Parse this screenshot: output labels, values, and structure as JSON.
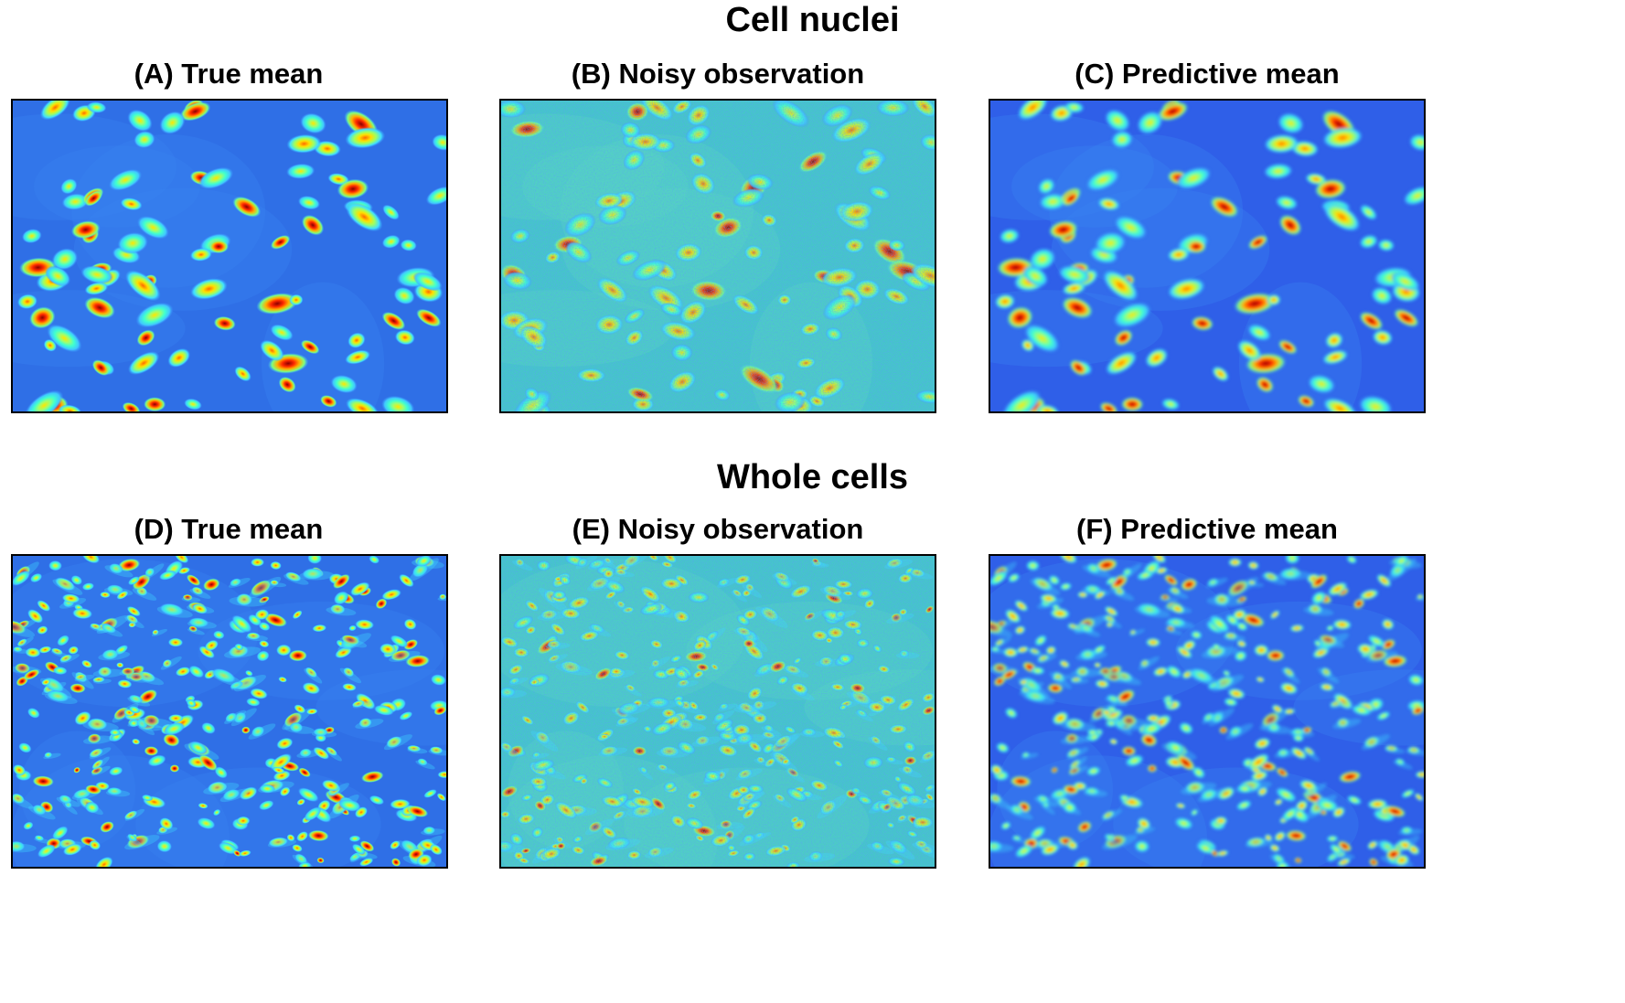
{
  "figure": {
    "sections": [
      {
        "title": "Cell nuclei",
        "panels": [
          {
            "label": "(A) True mean",
            "variant": "clean",
            "density": "sparse",
            "seed": 11
          },
          {
            "label": "(B) Noisy observation",
            "variant": "noisy",
            "density": "sparse",
            "seed": 11
          },
          {
            "label": "(C) Predictive mean",
            "variant": "smooth",
            "density": "sparse",
            "seed": 11
          }
        ]
      },
      {
        "title": "Whole cells",
        "panels": [
          {
            "label": "(D) True mean",
            "variant": "clean",
            "density": "dense",
            "seed": 29
          },
          {
            "label": "(E) Noisy observation",
            "variant": "noisy",
            "density": "dense",
            "seed": 29
          },
          {
            "label": "(F) Predictive mean",
            "variant": "smooth",
            "density": "dense",
            "seed": 29
          }
        ]
      }
    ],
    "colormap": [
      "#00007f",
      "#0000ff",
      "#007fff",
      "#00ffff",
      "#7fff7f",
      "#ffff00",
      "#ff7f00",
      "#ff0000",
      "#7f0000"
    ],
    "background_colors": {
      "clean": "#2f6fe6",
      "noisy": "#45c6c8",
      "smooth": "#2f5fe8"
    }
  }
}
